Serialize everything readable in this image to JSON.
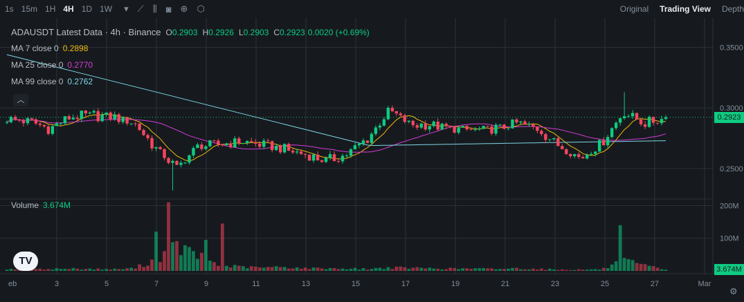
{
  "toolbar": {
    "timeframes": [
      "1s",
      "15m",
      "1H",
      "4H",
      "1D",
      "1W"
    ],
    "active_timeframe": "4H",
    "views": [
      "Original",
      "Trading View",
      "Depth"
    ],
    "active_view": "Trading View"
  },
  "legend": {
    "title": "ADAUSDT Latest Data · 4h · Binance",
    "open_label": "O",
    "open": "0.2903",
    "high_label": "H",
    "high": "0.2926",
    "low_label": "L",
    "low": "0.2903",
    "close_label": "C",
    "close": "0.2923",
    "change": "0.0020 (+0.69%)"
  },
  "ma": [
    {
      "label": "MA 7 close 0",
      "value": "0.2898",
      "color": "#f0b90b"
    },
    {
      "label": "MA 25 close 0",
      "value": "0.2770",
      "color": "#d63ad9"
    },
    {
      "label": "MA 99 close 0",
      "value": "0.2762",
      "color": "#7fd6e8"
    }
  ],
  "volume": {
    "label": "Volume",
    "value": "3.674M"
  },
  "current_price_tag": "0.2923",
  "current_volume_tag": "3.674M",
  "colors": {
    "up": "#0ecb81",
    "down": "#f6465d",
    "background": "#161a1e",
    "grid": "#2b3139"
  },
  "chart_data": {
    "type": "candlestick",
    "title": "ADAUSDT Latest Data · 4h · Binance",
    "price_axis": {
      "ticks": [
        "0.3500",
        "0.3000",
        "0.2500"
      ],
      "tick_values": [
        0.35,
        0.3,
        0.25
      ],
      "range": [
        0.226,
        0.372
      ]
    },
    "volume_axis": {
      "ticks": [
        "200M",
        "100M"
      ],
      "tick_values": [
        200,
        100
      ],
      "range": [
        0,
        220
      ]
    },
    "x_axis": {
      "ticks": [
        "eb",
        "3",
        "5",
        "7",
        "9",
        "11",
        "13",
        "15",
        "17",
        "19",
        "21",
        "23",
        "25",
        "27",
        "Mar"
      ]
    },
    "grid": true,
    "current_price": 0.2923,
    "current_volume": 3.674,
    "price_anchors": [
      [
        0.288,
        0.293
      ],
      [
        0.291,
        0.288
      ],
      [
        0.284,
        0.282
      ],
      [
        0.289,
        0.296
      ],
      [
        0.292,
        0.296
      ],
      [
        0.293,
        0.292
      ],
      [
        0.29,
        0.285
      ],
      [
        0.272,
        0.262
      ],
      [
        0.243,
        0.258
      ],
      [
        0.265,
        0.272
      ],
      [
        0.272,
        0.268
      ],
      [
        0.272,
        0.273
      ],
      [
        0.271,
        0.268
      ],
      [
        0.266,
        0.265
      ],
      [
        0.262,
        0.262
      ],
      [
        0.255,
        0.257
      ],
      [
        0.262,
        0.261
      ],
      [
        0.268,
        0.283
      ],
      [
        0.298,
        0.298
      ],
      [
        0.29,
        0.282
      ],
      [
        0.287,
        0.286
      ],
      [
        0.282,
        0.283
      ],
      [
        0.284,
        0.279
      ],
      [
        0.277,
        0.289
      ],
      [
        0.287,
        0.288
      ],
      [
        0.282,
        0.283
      ],
      [
        0.275,
        0.262
      ],
      [
        0.258,
        0.259
      ],
      [
        0.265,
        0.278
      ],
      [
        0.3,
        0.293
      ],
      [
        0.287,
        0.288
      ],
      [
        0.291,
        0.292
      ]
    ],
    "volume_anchors": [
      6,
      4,
      6,
      7,
      6,
      5,
      8,
      35,
      75,
      45,
      18,
      12,
      10,
      12,
      8,
      8,
      7,
      6,
      10,
      9,
      8,
      7,
      7,
      6,
      8,
      6,
      4,
      4,
      5,
      30,
      16,
      4
    ]
  }
}
